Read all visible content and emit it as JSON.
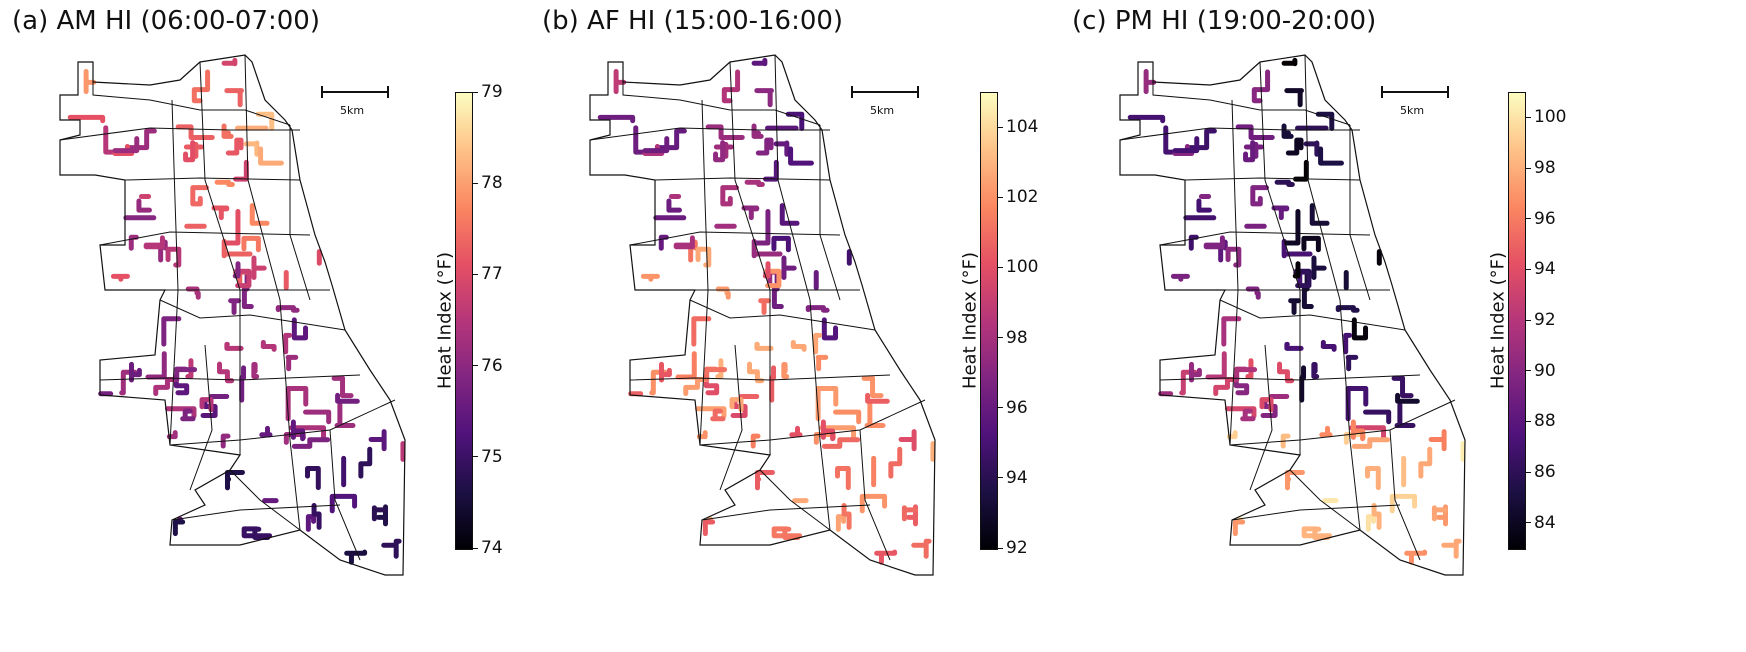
{
  "panels": [
    {
      "title": "(a) AM HI (06:00-07:00)",
      "colorbar_label": "Heat Index (°F)",
      "range": [
        74,
        79
      ],
      "ticks": [
        "74",
        "75",
        "76",
        "77",
        "78",
        "79"
      ],
      "tick_values": [
        74,
        75,
        76,
        77,
        78,
        79
      ],
      "scale_label": "5km"
    },
    {
      "title": "(b) AF HI (15:00-16:00)",
      "colorbar_label": "Heat Index (°F)",
      "range": [
        92,
        105
      ],
      "ticks": [
        "92",
        "94",
        "96",
        "98",
        "100",
        "102",
        "104"
      ],
      "tick_values": [
        92,
        94,
        96,
        98,
        100,
        102,
        104
      ],
      "scale_label": "5km"
    },
    {
      "title": "(c) PM HI (19:00-20:00)",
      "colorbar_label": "Heat Index (°F)",
      "range": [
        83,
        101
      ],
      "ticks": [
        "84",
        "86",
        "88",
        "90",
        "92",
        "94",
        "96",
        "98",
        "100"
      ],
      "tick_values": [
        84,
        86,
        88,
        90,
        92,
        94,
        96,
        98,
        100
      ],
      "scale_label": "5km"
    }
  ],
  "colormap": "magma",
  "colors": {
    "outline": "#111111",
    "background": "#ffffff"
  }
}
